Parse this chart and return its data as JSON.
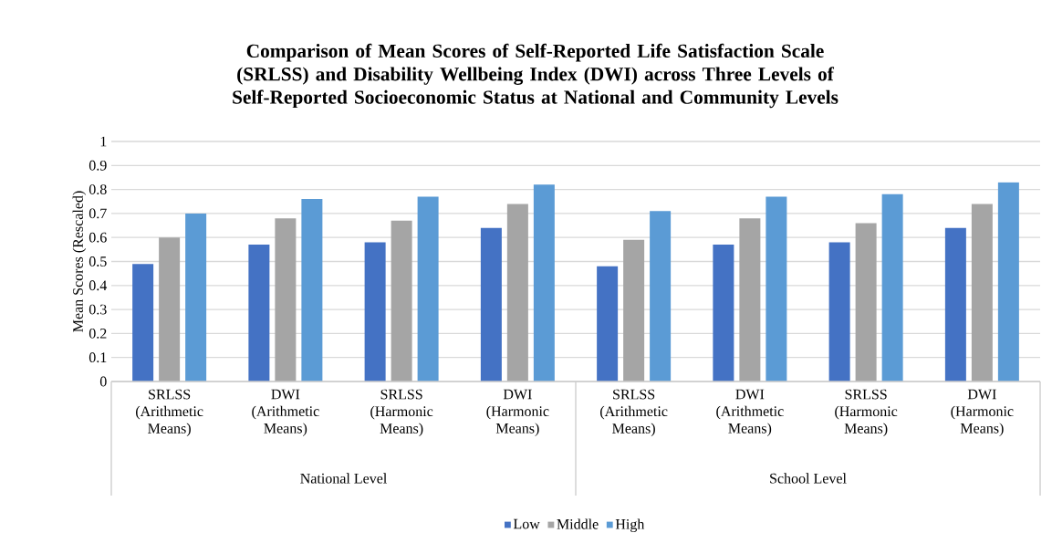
{
  "chart_data": {
    "type": "bar",
    "title": "Comparison of Mean Scores of Self-Reported Life Satisfaction Scale (SRLSS) and Disability Wellbeing Index (DWI) across Three Levels of Self-Reported Socioeconomic Status at National and Community Levels",
    "ylabel": "Mean Scores (Rescaled)",
    "categories": [
      "SRLSS (Arithmetic Means)",
      "DWI (Arithmetic Means)",
      "SRLSS (Harmonic Means)",
      "DWI (Harmonic Means)",
      "SRLSS (Arithmetic Means)",
      "DWI (Arithmetic Means)",
      "SRLSS (Harmonic Means)",
      "DWI (Harmonic Means)"
    ],
    "series": [
      {
        "name": "Low",
        "color": "#4472c4",
        "values": [
          0.49,
          0.57,
          0.58,
          0.64,
          0.48,
          0.57,
          0.58,
          0.64
        ]
      },
      {
        "name": "Middle",
        "color": "#a5a5a5",
        "values": [
          0.6,
          0.68,
          0.67,
          0.74,
          0.59,
          0.68,
          0.66,
          0.74
        ]
      },
      {
        "name": "High",
        "color": "#5b9bd5",
        "values": [
          0.7,
          0.76,
          0.77,
          0.82,
          0.71,
          0.77,
          0.78,
          0.83
        ]
      }
    ],
    "annotations": [
      "National Level",
      "School Level"
    ],
    "ylim": [
      0,
      1
    ],
    "yticks": [
      0,
      0.1,
      0.2,
      0.3,
      0.4,
      0.5,
      0.6,
      0.7,
      0.8,
      0.9,
      1
    ],
    "grid": "y",
    "legend": "bottom"
  }
}
